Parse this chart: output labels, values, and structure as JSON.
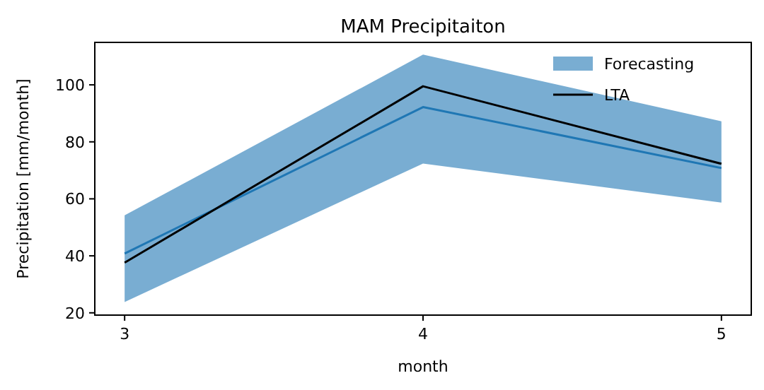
{
  "chart_data": {
    "type": "line",
    "title": "MAM Precipitaiton",
    "xlabel": "month",
    "ylabel": "Precipitation [mm/month]",
    "x": [
      3,
      4,
      5
    ],
    "xlim": [
      2.9,
      5.1
    ],
    "xticks": [
      3,
      4,
      5
    ],
    "ylim": [
      19.2,
      114.9
    ],
    "yticks": [
      20,
      40,
      60,
      80,
      100
    ],
    "series": [
      {
        "name": "Forecasting",
        "color": "#1f77b4",
        "values": [
          40.8,
          92.2,
          70.8
        ],
        "lower": [
          23.8,
          72.4,
          58.7
        ],
        "upper": [
          54.2,
          110.6,
          87.2
        ]
      },
      {
        "name": "LTA",
        "color": "#000000",
        "values": [
          37.6,
          99.5,
          72.3
        ]
      }
    ],
    "legend": "top right",
    "grid": false
  }
}
